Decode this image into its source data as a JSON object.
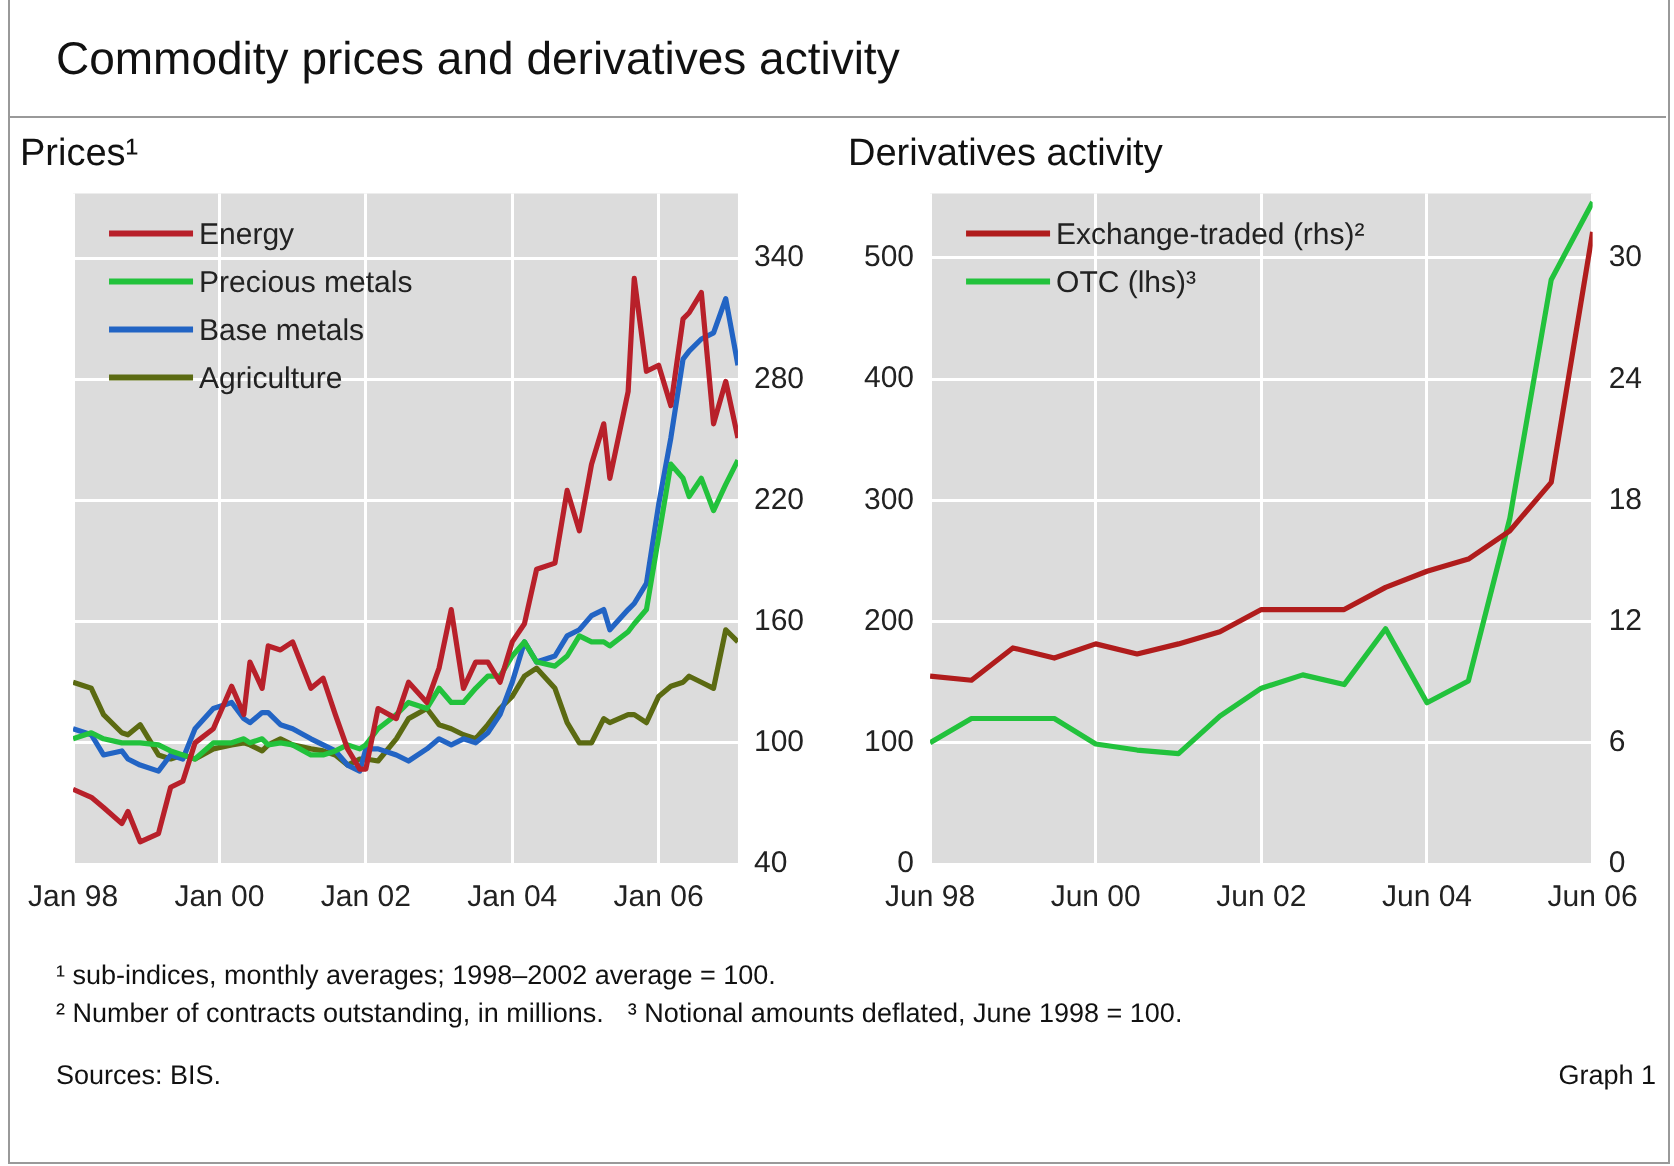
{
  "chart_data": [
    {
      "type": "line",
      "title": "Commodity prices and derivatives activity",
      "subtitle": "Prices¹",
      "legend": "top left",
      "grid": true,
      "x": [
        "1998-01",
        "1998-04",
        "1998-06",
        "1998-09",
        "1998-10",
        "1998-12",
        "1999-03",
        "1999-05",
        "1999-07",
        "1999-09",
        "1999-12",
        "2000-03",
        "2000-05",
        "2000-06",
        "2000-08",
        "2000-09",
        "2000-11",
        "2001-01",
        "2001-04",
        "2001-06",
        "2001-08",
        "2001-10",
        "2001-12",
        "2002-01",
        "2002-03",
        "2002-06",
        "2002-08",
        "2002-11",
        "2003-01",
        "2003-03",
        "2003-05",
        "2003-07",
        "2003-09",
        "2003-11",
        "2004-01",
        "2004-03",
        "2004-05",
        "2004-08",
        "2004-10",
        "2004-12",
        "2005-02",
        "2005-04",
        "2005-05",
        "2005-08",
        "2005-09",
        "2005-11",
        "2006-01",
        "2006-03",
        "2006-05",
        "2006-06",
        "2006-08",
        "2006-10",
        "2006-12",
        "2007-02"
      ],
      "xlim": [
        "1998-01",
        "2007-02"
      ],
      "xticks": [
        {
          "value": "1998-01",
          "label": "Jan 98"
        },
        {
          "value": "2000-01",
          "label": "Jan 00"
        },
        {
          "value": "2002-01",
          "label": "Jan 02"
        },
        {
          "value": "2004-01",
          "label": "Jan 04"
        },
        {
          "value": "2006-01",
          "label": "Jan 06"
        }
      ],
      "ylim": [
        40,
        372
      ],
      "yticks": [
        40,
        100,
        160,
        220,
        280,
        340
      ],
      "series": [
        {
          "name": "Energy",
          "color": "#b8202a",
          "values": [
            77,
            73,
            68,
            60,
            66,
            51,
            55,
            78,
            81,
            100,
            107,
            128,
            114,
            140,
            127,
            148,
            146,
            150,
            127,
            132,
            114,
            97,
            87,
            87,
            117,
            112,
            130,
            120,
            137,
            166,
            127,
            140,
            140,
            130,
            150,
            159,
            186,
            189,
            225,
            205,
            238,
            258,
            231,
            274,
            330,
            284,
            287,
            267,
            310,
            313,
            323,
            258,
            279,
            251
          ]
        },
        {
          "name": "Precious metals",
          "color": "#22c23c",
          "values": [
            102,
            105,
            102,
            100,
            100,
            100,
            99,
            96,
            94,
            92,
            100,
            100,
            102,
            100,
            102,
            99,
            100,
            99,
            94,
            94,
            96,
            99,
            97,
            99,
            107,
            114,
            120,
            117,
            127,
            120,
            120,
            127,
            133,
            133,
            143,
            150,
            140,
            138,
            143,
            153,
            150,
            150,
            148,
            155,
            159,
            166,
            202,
            238,
            231,
            222,
            231,
            215,
            228,
            240
          ]
        },
        {
          "name": "Base metals",
          "color": "#2264c4",
          "values": [
            107,
            104,
            94,
            96,
            92,
            89,
            86,
            94,
            92,
            107,
            117,
            120,
            112,
            110,
            115,
            115,
            109,
            107,
            102,
            99,
            96,
            89,
            86,
            97,
            97,
            94,
            91,
            97,
            102,
            99,
            102,
            100,
            105,
            114,
            130,
            150,
            140,
            143,
            153,
            156,
            163,
            166,
            156,
            166,
            169,
            179,
            218,
            251,
            290,
            294,
            300,
            303,
            320,
            287
          ]
        },
        {
          "name": "Agriculture",
          "color": "#5b6a12",
          "values": [
            130,
            127,
            114,
            105,
            104,
            109,
            94,
            92,
            94,
            92,
            97,
            99,
            100,
            99,
            96,
            99,
            102,
            99,
            97,
            96,
            94,
            89,
            92,
            92,
            91,
            102,
            112,
            117,
            109,
            107,
            104,
            102,
            109,
            117,
            123,
            133,
            137,
            127,
            110,
            100,
            100,
            112,
            110,
            114,
            114,
            110,
            123,
            128,
            130,
            133,
            130,
            127,
            156,
            150
          ]
        }
      ]
    },
    {
      "type": "line",
      "title": "Derivatives activity",
      "legend": "top left",
      "grid": true,
      "x": [
        "1998-06",
        "1998-12",
        "1999-06",
        "1999-12",
        "2000-06",
        "2000-12",
        "2001-06",
        "2001-12",
        "2002-06",
        "2002-12",
        "2003-06",
        "2003-12",
        "2004-06",
        "2004-12",
        "2005-06",
        "2005-12",
        "2006-06"
      ],
      "xlim": [
        "1998-06",
        "2006-06"
      ],
      "xticks": [
        {
          "value": "1998-06",
          "label": "Jun 98"
        },
        {
          "value": "2000-06",
          "label": "Jun 00"
        },
        {
          "value": "2002-06",
          "label": "Jun 02"
        },
        {
          "value": "2004-06",
          "label": "Jun 04"
        },
        {
          "value": "2006-06",
          "label": "Jun 06"
        }
      ],
      "ylim": [
        0,
        553
      ],
      "yticks": [
        0,
        100,
        200,
        300,
        400,
        500
      ],
      "y2lim": [
        0,
        33.2
      ],
      "y2ticks": [
        0,
        6,
        12,
        18,
        24,
        30
      ],
      "series": [
        {
          "name": "Exchange-traded (rhs)²",
          "color": "#b01c1c",
          "axis": "y2",
          "values": [
            9.3,
            9.1,
            10.7,
            10.2,
            10.9,
            10.4,
            10.9,
            11.5,
            12.6,
            12.6,
            12.6,
            13.7,
            14.5,
            15.1,
            16.5,
            18.9,
            31.3
          ]
        },
        {
          "name": "OTC (lhs)³",
          "color": "#22c23c",
          "values": [
            100,
            120,
            120,
            120,
            99,
            94,
            91,
            122,
            145,
            156,
            148,
            194,
            133,
            151,
            285,
            482,
            546
          ]
        }
      ],
      "annotations": [
        "¹ sub-indices, monthly averages; 1998–2002 average = 100.",
        "² Number of contracts outstanding, in millions.",
        "³ Notional amounts deflated, June 1998 = 100.",
        "Sources: BIS.",
        "Graph 1"
      ]
    }
  ]
}
